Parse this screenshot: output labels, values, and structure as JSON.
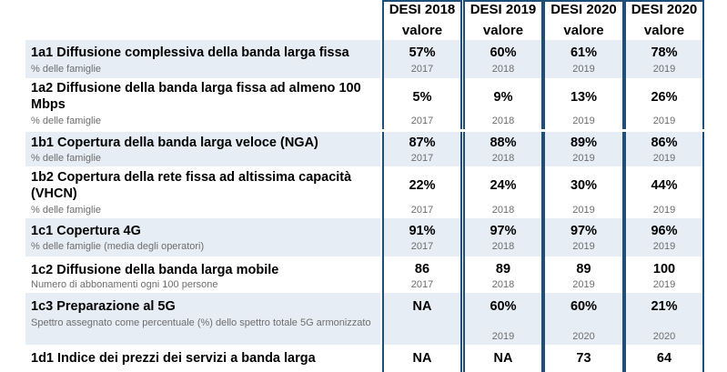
{
  "header": [
    {
      "line1": "DESI 2018",
      "line2": "valore"
    },
    {
      "line1": "DESI 2019",
      "line2": "valore"
    },
    {
      "line1": "DESI 2020",
      "line2": "valore"
    },
    {
      "line1": "DESI 2020",
      "line2": "valore"
    }
  ],
  "rows": [
    {
      "label": "1a1 Diffusione complessiva della banda larga fissa",
      "sub": "% delle famiglie",
      "values": [
        "57%",
        "60%",
        "61%",
        "78%"
      ],
      "years": [
        "2017",
        "2018",
        "2019",
        "2019"
      ]
    },
    {
      "label": "1a2 Diffusione della banda larga fissa ad almeno 100 Mbps",
      "sub": "% delle famiglie",
      "values": [
        "5%",
        "9%",
        "13%",
        "26%"
      ],
      "years": [
        "2017",
        "2018",
        "2019",
        "2019"
      ]
    },
    {
      "label": "1b1 Copertura della banda larga veloce (NGA)",
      "sub": "% delle famiglie",
      "values": [
        "87%",
        "88%",
        "89%",
        "86%"
      ],
      "years": [
        "2017",
        "2018",
        "2019",
        "2019"
      ]
    },
    {
      "label": "1b2 Copertura della rete fissa ad altissima capacità (VHCN)",
      "sub": "% delle famiglie",
      "values": [
        "22%",
        "24%",
        "30%",
        "44%"
      ],
      "years": [
        "2017",
        "2018",
        "2019",
        "2019"
      ]
    },
    {
      "label": "1c1 Copertura 4G",
      "sub": "% delle famiglie (media degli operatori)",
      "values": [
        "91%",
        "97%",
        "97%",
        "96%"
      ],
      "years": [
        "2017",
        "2018",
        "2019",
        "2019"
      ]
    },
    {
      "label": "1c2 Diffusione della banda larga mobile",
      "sub": "Numero di abbonamenti ogni 100 persone",
      "values": [
        "86",
        "89",
        "89",
        "100"
      ],
      "years": [
        "2017",
        "2018",
        "2019",
        "2019"
      ]
    },
    {
      "label": "1c3 Preparazione al 5G",
      "sub": "Spettro assegnato come percentuale (%) dello spettro totale 5G armonizzato",
      "values": [
        "NA",
        "60%",
        "60%",
        "21%"
      ],
      "years": [
        "",
        "2019",
        "2020",
        "2020"
      ]
    },
    {
      "label": "1d1 Indice dei prezzi dei servizi a banda larga",
      "sub": "",
      "values": [
        "NA",
        "NA",
        "73",
        "64"
      ],
      "years": [
        "",
        "",
        "",
        ""
      ]
    }
  ]
}
